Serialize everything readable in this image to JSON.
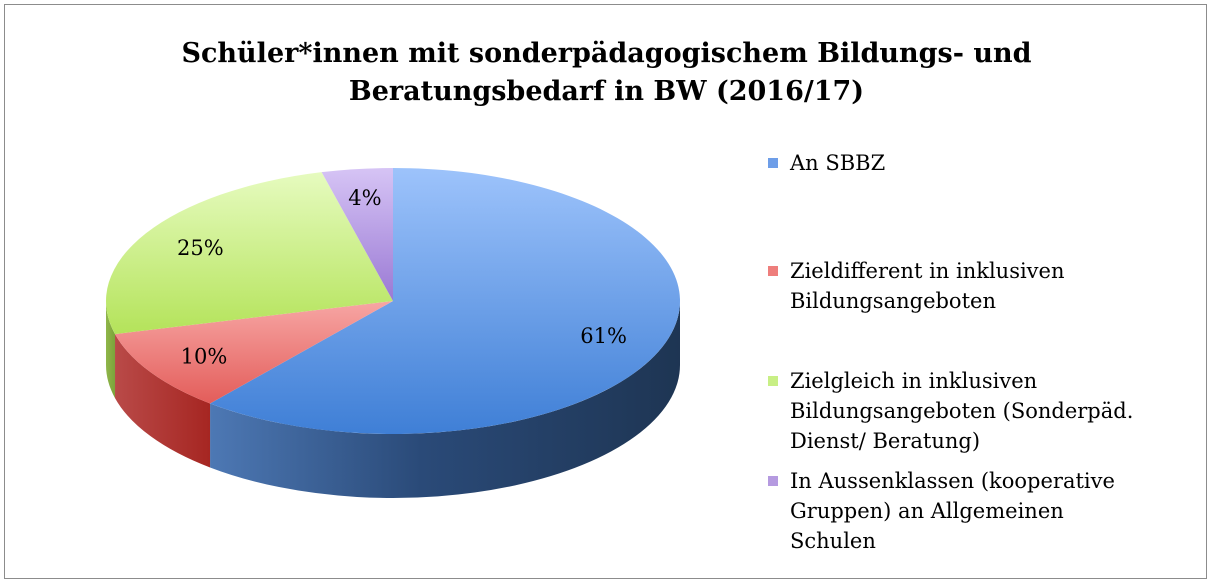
{
  "chart_data": {
    "type": "pie",
    "title": "Schüler*innen mit sonderpädagogischem Bildungs- und Beratungsbedarf in BW (2016/17)",
    "title_lines": [
      "Schüler*innen mit sonderpädagogischem Bildungs- und",
      "Beratungsbedarf in BW (2016/17)"
    ],
    "legend_position": "right",
    "slices": [
      {
        "label": "An SBBZ",
        "label_lines": [
          "An SBBZ"
        ],
        "value": 61,
        "data_label": "61%",
        "color": "#6e9ee8"
      },
      {
        "label": "Zieldifferent in inklusiven Bildungsangeboten",
        "label_lines": [
          "Zieldifferent in inklusiven",
          "Bildungsangeboten"
        ],
        "value": 10,
        "data_label": "10%",
        "color": "#ee7e7c"
      },
      {
        "label": "Zielgleich in inklusiven Bildungsangeboten (Sonderpäd. Dienst/ Beratung)",
        "label_lines": [
          "Zielgleich in inklusiven",
          "Bildungsangeboten (Sonderpäd.",
          "Dienst/ Beratung)"
        ],
        "value": 25,
        "data_label": "25%",
        "color": "#c8ef85"
      },
      {
        "label": "In Aussenklassen (kooperative Gruppen) an Allgemeinen Schulen",
        "label_lines": [
          "In Aussenklassen (kooperative",
          "Gruppen) an Allgemeinen",
          "Schulen"
        ],
        "value": 4,
        "data_label": "4%",
        "color": "#b59ae0"
      }
    ]
  }
}
